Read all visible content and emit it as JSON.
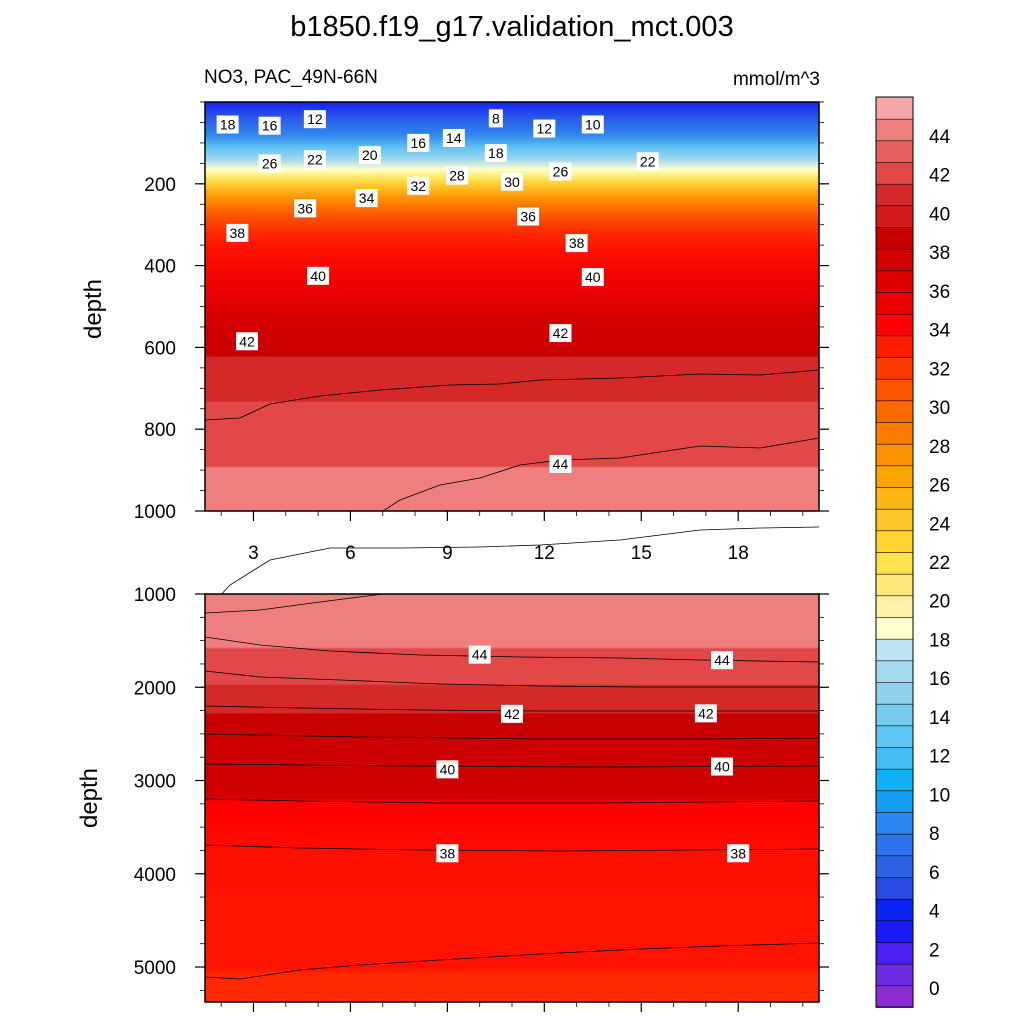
{
  "chart_data": {
    "type": "contour",
    "title": "b1850.f19_g17.validation_mct.003",
    "variable_label": "NO3, PAC_49N-66N",
    "units_label": "mmol/m^3",
    "x_ticks": [
      "3",
      "6",
      "9",
      "12",
      "15",
      "18"
    ],
    "x_tick_values": [
      3,
      6,
      9,
      12,
      15,
      18
    ],
    "xlim": [
      1.5,
      20.5
    ],
    "colorbar": {
      "levels": [
        0,
        2,
        4,
        6,
        8,
        10,
        12,
        14,
        16,
        18,
        20,
        22,
        24,
        26,
        28,
        30,
        32,
        34,
        36,
        38,
        40,
        42,
        44
      ],
      "tick_labels": [
        "0",
        "2",
        "4",
        "6",
        "8",
        "10",
        "12",
        "14",
        "16",
        "18",
        "20",
        "22",
        "24",
        "26",
        "28",
        "30",
        "32",
        "34",
        "36",
        "38",
        "40",
        "42",
        "44"
      ],
      "colors": [
        "#8d2bd8",
        "#6e2be5",
        "#4a20f2",
        "#1a18fd",
        "#0b26f4",
        "#2a4be3",
        "#2b62e8",
        "#2a73ec",
        "#2a86f0",
        "#139ef5",
        "#10b0f6",
        "#42bdf4",
        "#5ec6f2",
        "#79cbee",
        "#8fd2ef",
        "#a4d9ee",
        "#bfe3f2",
        "#ffffcc",
        "#fff2a8",
        "#ffe87a",
        "#ffe04e",
        "#ffd42e",
        "#fcc52a",
        "#fdb617",
        "#fca500",
        "#fc9000",
        "#fc7b00",
        "#fc6900",
        "#fc5400",
        "#fd3a00",
        "#fe1c00",
        "#ff0000",
        "#ef0000",
        "#e00000",
        "#d20000",
        "#c80000",
        "#d21a1a",
        "#d52828",
        "#e24848",
        "#e66060",
        "#ef7e7e",
        "#f5a6a6"
      ]
    },
    "panels": [
      {
        "name": "upper",
        "ylabel": "depth",
        "ylim": [
          0,
          1000
        ],
        "y_ticks": [
          "200",
          "400",
          "600",
          "800",
          "1000"
        ],
        "y_tick_values": [
          200,
          400,
          600,
          800,
          1000
        ],
        "contour_labels": [
          {
            "text": "18",
            "x": 2.2,
            "depth": 55
          },
          {
            "text": "16",
            "x": 3.5,
            "depth": 58
          },
          {
            "text": "12",
            "x": 4.9,
            "depth": 42
          },
          {
            "text": "8",
            "x": 10.5,
            "depth": 40
          },
          {
            "text": "12",
            "x": 12.0,
            "depth": 65
          },
          {
            "text": "10",
            "x": 13.5,
            "depth": 55
          },
          {
            "text": "16",
            "x": 8.1,
            "depth": 100
          },
          {
            "text": "14",
            "x": 9.2,
            "depth": 88
          },
          {
            "text": "18",
            "x": 10.5,
            "depth": 125
          },
          {
            "text": "20",
            "x": 6.6,
            "depth": 130
          },
          {
            "text": "22",
            "x": 4.9,
            "depth": 140
          },
          {
            "text": "26",
            "x": 3.5,
            "depth": 150
          },
          {
            "text": "22",
            "x": 15.2,
            "depth": 145
          },
          {
            "text": "26",
            "x": 12.5,
            "depth": 170
          },
          {
            "text": "28",
            "x": 9.3,
            "depth": 180
          },
          {
            "text": "30",
            "x": 11.0,
            "depth": 195
          },
          {
            "text": "32",
            "x": 8.1,
            "depth": 205
          },
          {
            "text": "34",
            "x": 6.5,
            "depth": 235
          },
          {
            "text": "36",
            "x": 4.6,
            "depth": 260
          },
          {
            "text": "36",
            "x": 11.5,
            "depth": 280
          },
          {
            "text": "38",
            "x": 2.5,
            "depth": 320
          },
          {
            "text": "38",
            "x": 13.0,
            "depth": 345
          },
          {
            "text": "40",
            "x": 5.0,
            "depth": 425
          },
          {
            "text": "40",
            "x": 13.5,
            "depth": 428
          },
          {
            "text": "42",
            "x": 2.8,
            "depth": 585
          },
          {
            "text": "42",
            "x": 12.5,
            "depth": 565
          },
          {
            "text": "44",
            "x": 12.5,
            "depth": 885
          }
        ]
      },
      {
        "name": "lower",
        "ylabel": "depth",
        "ylim": [
          1000,
          5375
        ],
        "y_ticks": [
          "1000",
          "2000",
          "3000",
          "4000",
          "5000"
        ],
        "y_tick_values": [
          1000,
          2000,
          3000,
          4000,
          5000
        ],
        "contour_labels": [
          {
            "text": "44",
            "x": 10.0,
            "depth": 1650
          },
          {
            "text": "44",
            "x": 17.5,
            "depth": 1710
          },
          {
            "text": "42",
            "x": 11.0,
            "depth": 2285
          },
          {
            "text": "42",
            "x": 17.0,
            "depth": 2280
          },
          {
            "text": "40",
            "x": 9.0,
            "depth": 2880
          },
          {
            "text": "40",
            "x": 17.5,
            "depth": 2850
          },
          {
            "text": "38",
            "x": 9.0,
            "depth": 3780
          },
          {
            "text": "38",
            "x": 18.0,
            "depth": 3780
          }
        ]
      }
    ]
  }
}
